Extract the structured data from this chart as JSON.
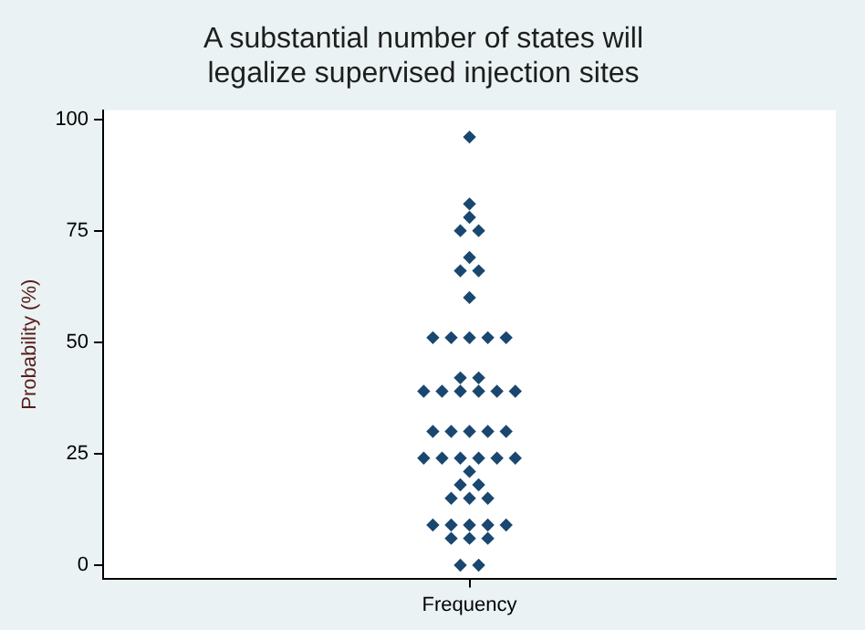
{
  "chart_data": {
    "type": "scatter",
    "title": [
      "A substantial number of states will",
      "legalize supervised injection sites"
    ],
    "ylabel": "Probability (%)",
    "categories": [
      "Frequency"
    ],
    "series": [
      {
        "color": "#1a476f",
        "x": [
          "Frequency",
          "Frequency",
          "Frequency",
          "Frequency",
          "Frequency",
          "Frequency",
          "Frequency",
          "Frequency",
          "Frequency",
          "Frequency",
          "Frequency",
          "Frequency",
          "Frequency",
          "Frequency",
          "Frequency",
          "Frequency",
          "Frequency",
          "Frequency",
          "Frequency",
          "Frequency",
          "Frequency",
          "Frequency",
          "Frequency",
          "Frequency",
          "Frequency",
          "Frequency",
          "Frequency",
          "Frequency",
          "Frequency",
          "Frequency",
          "Frequency",
          "Frequency",
          "Frequency",
          "Frequency",
          "Frequency",
          "Frequency",
          "Frequency",
          "Frequency",
          "Frequency",
          "Frequency",
          "Frequency",
          "Frequency",
          "Frequency",
          "Frequency",
          "Frequency",
          "Frequency",
          "Frequency",
          "Frequency",
          "Frequency"
        ],
        "values": [
          96,
          81,
          78,
          75,
          75,
          69,
          66,
          66,
          60,
          51,
          51,
          51,
          51,
          51,
          42,
          42,
          39,
          39,
          39,
          39,
          39,
          39,
          30,
          30,
          30,
          30,
          30,
          24,
          24,
          24,
          24,
          24,
          24,
          21,
          18,
          18,
          15,
          15,
          15,
          9,
          9,
          9,
          9,
          9,
          6,
          6,
          6,
          0,
          0
        ]
      }
    ],
    "marker": "diamond",
    "ylim": [
      -3,
      102
    ],
    "yticks": [
      0,
      25,
      50,
      75,
      100
    ],
    "grid": false,
    "legend": false
  }
}
